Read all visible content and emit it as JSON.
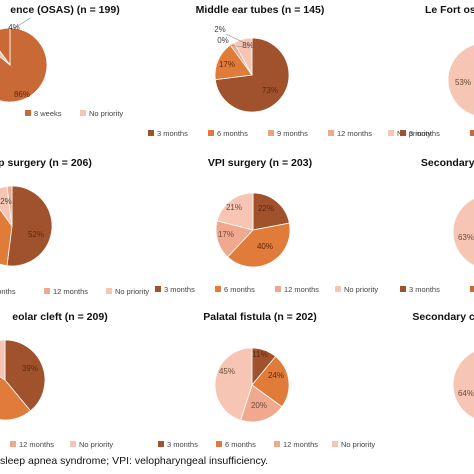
{
  "colors": {
    "3 months": "#a0522d",
    "6 months": "#e07b39",
    "9 months": "#e8a47a",
    "12 months": "#f0a98e",
    "No priority": "#f6c5b3"
  },
  "chart_data": [
    {
      "type": "pie",
      "title": "ence (OSAS) (n = 199)",
      "slices": [
        {
          "category": "8 weeks",
          "value": 86,
          "label": "86%"
        },
        {
          "category": "No priority",
          "value": 4,
          "label": "4%"
        },
        {
          "category": "weeks",
          "value": 10,
          "label": ""
        }
      ],
      "legend": [
        "weeks",
        "8 weeks",
        "No priority"
      ]
    },
    {
      "type": "pie",
      "title": "Middle ear tubes (n = 145)",
      "slices": [
        {
          "category": "3 months",
          "value": 73,
          "label": "73%"
        },
        {
          "category": "6 months",
          "value": 17,
          "label": "17%"
        },
        {
          "category": "9 months",
          "value": 0,
          "label": "0%"
        },
        {
          "category": "12 months",
          "value": 2,
          "label": "2%"
        },
        {
          "category": "No priority",
          "value": 8,
          "label": "8%"
        }
      ],
      "legend": [
        "3 months",
        "6 months",
        "9 months",
        "12 months",
        "No priority"
      ]
    },
    {
      "type": "pie",
      "title": "Le Fort oste",
      "slices": [
        {
          "category": "No priority",
          "value": 53,
          "label": "53%"
        },
        {
          "category": "3 months",
          "value": 47,
          "label": ""
        }
      ],
      "legend": [
        "3 months",
        "6 m"
      ]
    },
    {
      "type": "pie",
      "title": "p surgery (n = 206)",
      "slices": [
        {
          "category": "3 months",
          "value": 52,
          "label": "52%"
        },
        {
          "category": "6 months",
          "value": 38,
          "label": ""
        },
        {
          "category": "No priority",
          "value": 8,
          "label": ""
        },
        {
          "category": "12 months",
          "value": 2,
          "label": "2%"
        }
      ],
      "legend": [
        "months",
        "12 months",
        "No priority"
      ]
    },
    {
      "type": "pie",
      "title": "VPI surgery (n = 203)",
      "slices": [
        {
          "category": "3 months",
          "value": 22,
          "label": "22%"
        },
        {
          "category": "6 months",
          "value": 40,
          "label": "40%"
        },
        {
          "category": "12 months",
          "value": 17,
          "label": "17%"
        },
        {
          "category": "No priority",
          "value": 21,
          "label": "21%"
        }
      ],
      "legend": [
        "3 months",
        "6 months",
        "12 months",
        "No priority"
      ]
    },
    {
      "type": "pie",
      "title": "Secondary cleft",
      "slices": [
        {
          "category": "No priority",
          "value": 63,
          "label": "63%"
        },
        {
          "category": "3 months",
          "value": 37,
          "label": ""
        }
      ],
      "legend": [
        "3 months",
        "6 m"
      ]
    },
    {
      "type": "pie",
      "title": "eolar cleft (n = 209)",
      "slices": [
        {
          "category": "3 months",
          "value": 39,
          "label": "39%"
        },
        {
          "category": "6 months",
          "value": 45,
          "label": ""
        },
        {
          "category": "No priority",
          "value": 16,
          "label": ""
        }
      ],
      "legend": [
        "12 months",
        "No priority"
      ]
    },
    {
      "type": "pie",
      "title": "Palatal fistula (n = 202)",
      "slices": [
        {
          "category": "3 months",
          "value": 11,
          "label": "11%"
        },
        {
          "category": "6 months",
          "value": 24,
          "label": "24%"
        },
        {
          "category": "12 months",
          "value": 20,
          "label": "20%"
        },
        {
          "category": "No priority",
          "value": 45,
          "label": "45%"
        }
      ],
      "legend": [
        "3 months",
        "6 months",
        "12 months",
        "No priority"
      ]
    },
    {
      "type": "pie",
      "title": "Secondary cleft r",
      "slices": [
        {
          "category": "No priority",
          "value": 64,
          "label": "64%"
        },
        {
          "category": "3 months",
          "value": 36,
          "label": ""
        }
      ],
      "legend": []
    }
  ],
  "footnote": "sleep apnea syndrome; VPI: velopharyngeal insufficiency."
}
